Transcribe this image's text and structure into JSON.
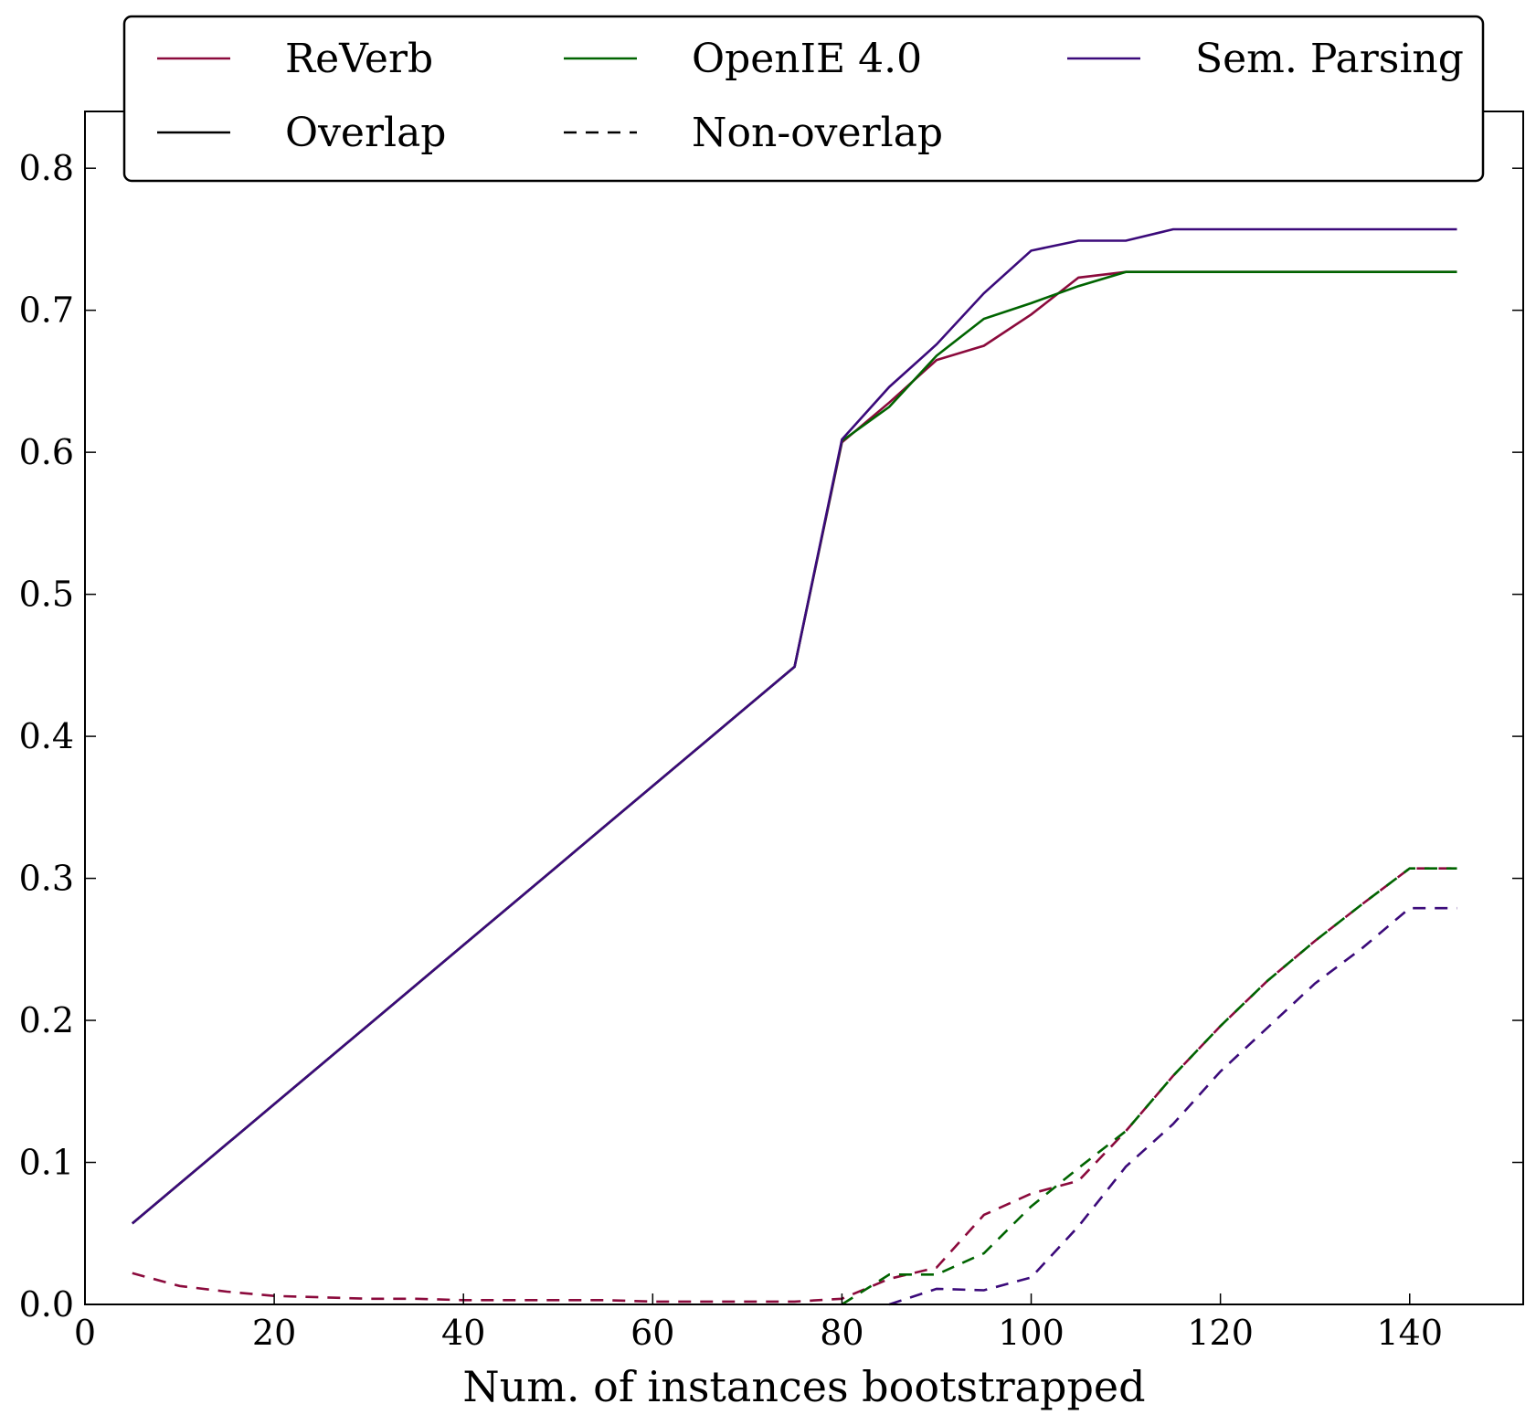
{
  "chart_data": {
    "type": "line",
    "title": "",
    "xlabel": "Num. of instances bootstrapped",
    "ylabel": "",
    "xlim": [
      0,
      152
    ],
    "ylim": [
      0,
      0.84
    ],
    "xticks": [
      0,
      20,
      40,
      60,
      80,
      100,
      120,
      140
    ],
    "yticks": [
      0.0,
      0.1,
      0.2,
      0.3,
      0.4,
      0.5,
      0.6,
      0.7,
      0.8
    ],
    "xtick_labels": [
      "0",
      "20",
      "40",
      "60",
      "80",
      "100",
      "120",
      "140"
    ],
    "ytick_labels": [
      "0.0",
      "0.1",
      "0.2",
      "0.3",
      "0.4",
      "0.5",
      "0.6",
      "0.7",
      "0.8"
    ],
    "grid": false,
    "legend_placement": "top",
    "legend": [
      {
        "label": "ReVerb",
        "color": "#8b0a3c",
        "dash": "solid"
      },
      {
        "label": "OpenIE 4.0",
        "color": "#006400",
        "dash": "solid"
      },
      {
        "label": "Sem. Parsing",
        "color": "#3b0a7a",
        "dash": "solid"
      },
      {
        "label": "Overlap",
        "color": "#000000",
        "dash": "solid"
      },
      {
        "label": "Non-overlap",
        "color": "#000000",
        "dash": "dashed"
      }
    ],
    "series": [
      {
        "name": "ReVerb",
        "group": "Overlap",
        "color": "#8b0a3c",
        "dash": "solid",
        "x": [
          5,
          10,
          15,
          20,
          25,
          30,
          35,
          40,
          45,
          50,
          55,
          60,
          65,
          70,
          75,
          80,
          85,
          90,
          95,
          100,
          105,
          110,
          115,
          120,
          125,
          130,
          135,
          140,
          145
        ],
        "y": [
          0.057,
          0.085,
          0.113,
          0.141,
          0.169,
          0.197,
          0.225,
          0.253,
          0.281,
          0.309,
          0.337,
          0.365,
          0.393,
          0.421,
          0.449,
          0.607,
          0.635,
          0.665,
          0.675,
          0.697,
          0.723,
          0.727,
          0.727,
          0.727,
          0.727,
          0.727,
          0.727,
          0.727,
          0.727
        ]
      },
      {
        "name": "OpenIE 4.0",
        "group": "Overlap",
        "color": "#006400",
        "dash": "solid",
        "x": [
          5,
          10,
          15,
          20,
          25,
          30,
          35,
          40,
          45,
          50,
          55,
          60,
          65,
          70,
          75,
          80,
          85,
          90,
          95,
          100,
          105,
          110,
          115,
          120,
          125,
          130,
          135,
          140,
          145
        ],
        "y": [
          0.057,
          0.085,
          0.113,
          0.141,
          0.169,
          0.197,
          0.225,
          0.253,
          0.281,
          0.309,
          0.337,
          0.365,
          0.393,
          0.421,
          0.449,
          0.608,
          0.632,
          0.668,
          0.694,
          0.705,
          0.717,
          0.727,
          0.727,
          0.727,
          0.727,
          0.727,
          0.727,
          0.727,
          0.727
        ]
      },
      {
        "name": "Sem. Parsing",
        "group": "Overlap",
        "color": "#3b0a7a",
        "dash": "solid",
        "x": [
          5,
          10,
          15,
          20,
          25,
          30,
          35,
          40,
          45,
          50,
          55,
          60,
          65,
          70,
          75,
          80,
          85,
          90,
          95,
          100,
          105,
          110,
          115,
          120,
          125,
          130,
          135,
          140,
          145
        ],
        "y": [
          0.057,
          0.085,
          0.113,
          0.141,
          0.169,
          0.197,
          0.225,
          0.253,
          0.281,
          0.309,
          0.337,
          0.365,
          0.393,
          0.421,
          0.449,
          0.609,
          0.646,
          0.676,
          0.712,
          0.742,
          0.749,
          0.749,
          0.757,
          0.757,
          0.757,
          0.757,
          0.757,
          0.757,
          0.757
        ]
      },
      {
        "name": "ReVerb",
        "group": "Non-overlap",
        "color": "#8b0a3c",
        "dash": "dashed",
        "x": [
          5,
          10,
          15,
          20,
          25,
          30,
          35,
          40,
          45,
          50,
          55,
          60,
          65,
          70,
          75,
          80,
          85,
          90,
          95,
          100,
          105,
          110,
          115,
          120,
          125,
          130,
          135,
          140,
          145
        ],
        "y": [
          0.022,
          0.013,
          0.009,
          0.006,
          0.005,
          0.004,
          0.004,
          0.003,
          0.003,
          0.003,
          0.003,
          0.002,
          0.002,
          0.002,
          0.002,
          0.004,
          0.018,
          0.026,
          0.063,
          0.078,
          0.087,
          0.122,
          0.161,
          0.196,
          0.228,
          0.256,
          0.282,
          0.307,
          0.307
        ]
      },
      {
        "name": "OpenIE 4.0",
        "group": "Non-overlap",
        "color": "#006400",
        "dash": "dashed",
        "x": [
          80,
          85,
          90,
          95,
          100,
          105,
          110,
          115,
          120,
          125,
          130,
          135,
          140,
          145
        ],
        "y": [
          0.0,
          0.021,
          0.021,
          0.036,
          0.069,
          0.096,
          0.122,
          0.161,
          0.196,
          0.228,
          0.256,
          0.282,
          0.307,
          0.307
        ]
      },
      {
        "name": "Sem. Parsing",
        "group": "Non-overlap",
        "color": "#3b0a7a",
        "dash": "dashed",
        "x": [
          85,
          90,
          95,
          100,
          105,
          110,
          115,
          120,
          125,
          130,
          135,
          140,
          145
        ],
        "y": [
          0.0,
          0.011,
          0.01,
          0.019,
          0.055,
          0.097,
          0.127,
          0.164,
          0.195,
          0.226,
          0.251,
          0.279,
          0.279
        ]
      }
    ]
  }
}
